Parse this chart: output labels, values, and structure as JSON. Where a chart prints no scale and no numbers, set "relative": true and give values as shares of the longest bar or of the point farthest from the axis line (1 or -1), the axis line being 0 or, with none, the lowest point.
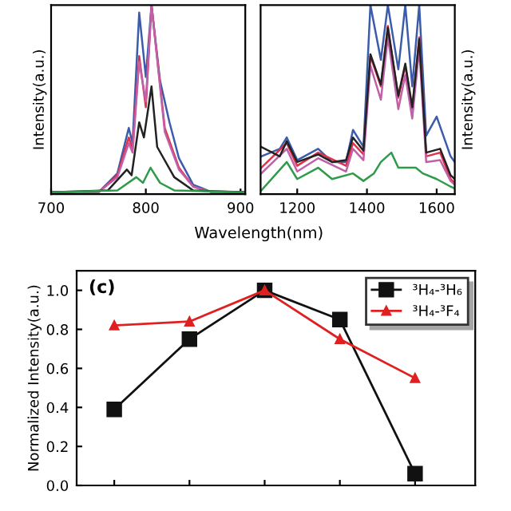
{
  "chart_data": [
    {
      "type": "line",
      "relative": true,
      "ylabel": "Intensity(a.u.)",
      "xlabel": "Wavelength(nm)",
      "xlim": [
        700,
        905
      ],
      "xticks": [
        700,
        800,
        900
      ],
      "tick_labels": "x",
      "grid": false,
      "legend": false,
      "series": [
        {
          "color": "#3b5bab",
          "x": [
            700,
            750,
            770,
            782,
            786,
            793,
            800,
            806,
            815,
            825,
            835,
            850,
            870,
            905
          ],
          "values": [
            0.01,
            0.01,
            0.11,
            0.35,
            0.27,
            0.96,
            0.62,
            1,
            0.6,
            0.38,
            0.19,
            0.05,
            0.01,
            0.01
          ]
        },
        {
          "color": "#e0304a",
          "x": [
            700,
            750,
            770,
            782,
            786,
            793,
            800,
            806,
            820,
            835,
            850,
            870,
            905
          ],
          "values": [
            0.01,
            0.01,
            0.1,
            0.3,
            0.24,
            0.73,
            0.46,
            1,
            0.35,
            0.14,
            0.04,
            0.01,
            0.01
          ]
        },
        {
          "color": "#c060a8",
          "x": [
            700,
            750,
            770,
            782,
            786,
            793,
            800,
            806,
            820,
            835,
            850,
            870,
            905
          ],
          "values": [
            0.01,
            0.01,
            0.09,
            0.27,
            0.22,
            0.7,
            0.49,
            1,
            0.33,
            0.13,
            0.04,
            0.01,
            0.01
          ]
        },
        {
          "color": "#222222",
          "x": [
            700,
            760,
            780,
            785,
            793,
            798,
            806,
            812,
            830,
            850,
            905
          ],
          "values": [
            0.01,
            0.02,
            0.13,
            0.1,
            0.38,
            0.3,
            0.57,
            0.25,
            0.09,
            0.02,
            0.01
          ]
        },
        {
          "color": "#2e9b4a",
          "x": [
            700,
            770,
            790,
            797,
            805,
            815,
            830,
            905
          ],
          "values": [
            0.01,
            0.02,
            0.09,
            0.06,
            0.14,
            0.06,
            0.02,
            0.01
          ]
        }
      ]
    },
    {
      "type": "line",
      "relative": true,
      "y2label": "Intensity(a.u.)",
      "xlim": [
        1095,
        1652
      ],
      "xticks": [
        1200,
        1400,
        1600
      ],
      "tick_labels": "x",
      "grid": false,
      "legend": false,
      "series": [
        {
          "color": "#3b5bab",
          "x": [
            1097,
            1150,
            1170,
            1200,
            1260,
            1300,
            1340,
            1360,
            1390,
            1410,
            1440,
            1460,
            1490,
            1510,
            1530,
            1550,
            1570,
            1600,
            1640,
            1652
          ],
          "values": [
            0.2,
            0.24,
            0.3,
            0.18,
            0.24,
            0.17,
            0.17,
            0.34,
            0.25,
            1,
            0.71,
            1,
            0.66,
            1,
            0.57,
            1,
            0.31,
            0.41,
            0.2,
            0.17
          ]
        },
        {
          "color": "#e0304a",
          "x": [
            1097,
            1170,
            1200,
            1260,
            1340,
            1360,
            1390,
            1410,
            1440,
            1460,
            1490,
            1510,
            1530,
            1550,
            1570,
            1610,
            1640,
            1652
          ],
          "values": [
            0.14,
            0.27,
            0.15,
            0.22,
            0.15,
            0.27,
            0.21,
            0.73,
            0.57,
            0.89,
            0.51,
            0.68,
            0.45,
            0.83,
            0.2,
            0.22,
            0.08,
            0.06
          ]
        },
        {
          "color": "#c060a8",
          "x": [
            1097,
            1170,
            1200,
            1260,
            1340,
            1360,
            1390,
            1410,
            1440,
            1460,
            1490,
            1510,
            1530,
            1550,
            1570,
            1610,
            1640,
            1652
          ],
          "values": [
            0.11,
            0.24,
            0.12,
            0.19,
            0.12,
            0.24,
            0.18,
            0.68,
            0.5,
            0.83,
            0.45,
            0.63,
            0.4,
            0.77,
            0.17,
            0.18,
            0.07,
            0.05
          ]
        },
        {
          "color": "#222222",
          "x": [
            1097,
            1150,
            1170,
            1200,
            1260,
            1300,
            1340,
            1360,
            1390,
            1410,
            1440,
            1460,
            1490,
            1510,
            1530,
            1550,
            1570,
            1610,
            1640,
            1652
          ],
          "values": [
            0.25,
            0.2,
            0.28,
            0.17,
            0.21,
            0.17,
            0.18,
            0.3,
            0.23,
            0.74,
            0.58,
            0.88,
            0.52,
            0.69,
            0.46,
            0.82,
            0.22,
            0.24,
            0.1,
            0.08
          ]
        },
        {
          "color": "#2e9b4a",
          "x": [
            1097,
            1170,
            1200,
            1260,
            1300,
            1360,
            1390,
            1420,
            1440,
            1470,
            1490,
            1540,
            1560,
            1600,
            1640,
            1652
          ],
          "values": [
            0.02,
            0.17,
            0.08,
            0.14,
            0.08,
            0.11,
            0.07,
            0.11,
            0.17,
            0.22,
            0.14,
            0.14,
            0.11,
            0.08,
            0.04,
            0.03
          ]
        }
      ]
    },
    {
      "type": "line",
      "ylabel": "Normalized Intensity(a.u.)",
      "categories": [
        null,
        null,
        null,
        null,
        null
      ],
      "ylim": [
        0,
        1.1
      ],
      "yticks": [
        {
          "value": 0,
          "label": "0.0"
        },
        {
          "value": 0.2,
          "label": "0.2"
        },
        {
          "value": 0.4,
          "label": "0.4"
        },
        {
          "value": 0.6,
          "label": "0.6"
        },
        {
          "value": 0.8,
          "label": "0.8"
        },
        {
          "value": 1,
          "label": "1.0"
        }
      ],
      "tick_labels": "y",
      "grid": false,
      "legend": "top right",
      "annotations": [
        "(c)"
      ],
      "series": [
        {
          "name": "³H₄-³H₆",
          "color": "#111111",
          "marker": "square",
          "values": [
            0.39,
            0.75,
            1.0,
            0.85,
            0.06
          ]
        },
        {
          "name": "³H₄-³F₄",
          "color": "#e02020",
          "marker": "triangle",
          "values": [
            0.82,
            0.84,
            1.0,
            0.75,
            0.55
          ]
        }
      ]
    }
  ]
}
